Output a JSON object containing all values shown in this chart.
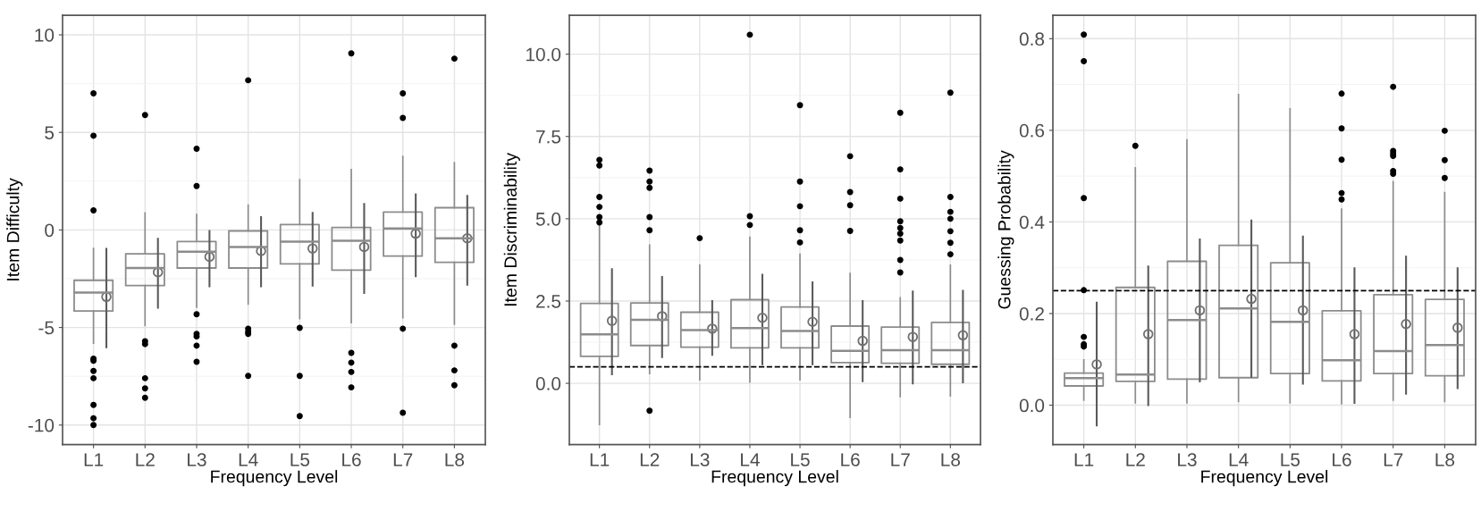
{
  "chart_data": [
    {
      "type": "box",
      "xlabel": "Frequency Level",
      "ylabel": "Item Difficulty",
      "categories": [
        "L1",
        "L2",
        "L3",
        "L4",
        "L5",
        "L6",
        "L7",
        "L8"
      ],
      "ylim": [
        -11,
        11
      ],
      "yticks": [
        -10,
        -5,
        0,
        5,
        10
      ],
      "grid": true,
      "series": [
        {
          "color": "#8c8c8c",
          "boxes": [
            {
              "low": -5.8,
              "q1": -4.15,
              "median": -3.21,
              "q3": -2.58,
              "high": -0.95,
              "outliers": [
                7.0,
                4.83,
                1.0,
                -6.6,
                -6.7,
                -7.23,
                -7.6,
                -8.97,
                -9.65,
                -10.0
              ]
            },
            {
              "low": -4.9,
              "q1": -2.85,
              "median": -1.95,
              "q3": -1.22,
              "high": 0.87,
              "outliers": [
                5.89,
                -5.7,
                -5.85,
                -7.6,
                -8.12,
                -8.6
              ]
            },
            {
              "low": -3.96,
              "q1": -1.95,
              "median": -1.11,
              "q3": -0.59,
              "high": 0.79,
              "outliers": [
                4.16,
                2.25,
                -4.32,
                -5.33,
                -5.46,
                -5.93,
                -6.76
              ]
            },
            {
              "low": -3.8,
              "q1": -1.95,
              "median": -0.87,
              "q3": -0.05,
              "high": 1.27,
              "outliers": [
                7.67,
                -5.06,
                -5.22,
                -5.33,
                -7.48
              ]
            },
            {
              "low": -4.54,
              "q1": -1.74,
              "median": -0.6,
              "q3": 0.28,
              "high": 2.58,
              "outliers": [
                -5.02,
                -7.48,
                -9.54
              ]
            },
            {
              "low": -4.75,
              "q1": -2.06,
              "median": -0.55,
              "q3": 0.13,
              "high": 3.09,
              "outliers": [
                9.05,
                -6.3,
                -6.8,
                -7.28,
                -8.07
              ]
            },
            {
              "low": -4.5,
              "q1": -1.34,
              "median": 0.08,
              "q3": 0.92,
              "high": 3.77,
              "outliers": [
                7.0,
                5.74,
                -5.06,
                -9.37
              ]
            },
            {
              "low": -4.83,
              "q1": -1.66,
              "median": -0.43,
              "q3": 1.14,
              "high": 3.45,
              "outliers": [
                8.78,
                -5.93,
                -7.2,
                -7.96
              ]
            }
          ]
        },
        {
          "type": "scatter",
          "color": "#707070",
          "marker": "circle",
          "x": [
            "L1",
            "L2",
            "L3",
            "L4",
            "L5",
            "L6",
            "L7",
            "L8"
          ],
          "values": [
            -3.43,
            -2.17,
            -1.38,
            -1.08,
            -0.95,
            -0.87,
            -0.19,
            -0.43
          ],
          "errors": [
            [
              -6.06,
              -0.92
            ],
            [
              -4.03,
              -0.4
            ],
            [
              -2.93,
              0.0
            ],
            [
              -2.93,
              0.71
            ],
            [
              -2.9,
              0.92
            ],
            [
              -3.28,
              1.38
            ],
            [
              -2.42,
              1.87
            ],
            [
              -2.85,
              1.79
            ]
          ]
        }
      ]
    },
    {
      "type": "box",
      "xlabel": "Frequency Level",
      "ylabel": "Item Discriminability",
      "categories": [
        "L1",
        "L2",
        "L3",
        "L4",
        "L5",
        "L6",
        "L7",
        "L8"
      ],
      "ylim": [
        -1.86,
        11.18
      ],
      "yticks": [
        {
          "value": 0,
          "label": "0.0"
        },
        2.5,
        {
          "value": 5,
          "label": "5.0"
        },
        7.5,
        {
          "value": 10,
          "label": "10.0"
        }
      ],
      "grid": true,
      "ref_lines": [
        {
          "axis": "y",
          "value": 0.5,
          "line_style": "dashed",
          "color": "#000000"
        }
      ],
      "series": [
        {
          "color": "#8c8c8c",
          "boxes": [
            {
              "low": -1.25,
              "q1": 0.82,
              "median": 1.49,
              "q3": 2.43,
              "high": 4.81,
              "outliers": [
                6.79,
                6.62,
                5.66,
                5.36,
                5.05,
                4.89
              ]
            },
            {
              "low": 0.3,
              "q1": 1.15,
              "median": 1.93,
              "q3": 2.44,
              "high": 4.2,
              "outliers": [
                6.46,
                6.13,
                5.94,
                5.05,
                4.65,
                -0.83
              ]
            },
            {
              "low": 0.11,
              "q1": 1.1,
              "median": 1.62,
              "q3": 2.16,
              "high": 3.59,
              "outliers": [
                4.41
              ]
            },
            {
              "low": 0.04,
              "q1": 1.08,
              "median": 1.68,
              "q3": 2.54,
              "high": 4.44,
              "outliers": [
                10.59,
                5.08,
                4.81
              ]
            },
            {
              "low": 0.11,
              "q1": 1.08,
              "median": 1.59,
              "q3": 2.32,
              "high": 3.92,
              "outliers": [
                8.45,
                6.13,
                5.38,
                4.65,
                4.28
              ]
            },
            {
              "low": -1.03,
              "q1": 0.63,
              "median": 0.99,
              "q3": 1.74,
              "high": 3.34,
              "outliers": [
                6.9,
                5.81,
                5.41,
                4.63
              ]
            },
            {
              "low": -0.4,
              "q1": 0.61,
              "median": 1.01,
              "q3": 1.71,
              "high": 2.6,
              "outliers": [
                8.22,
                6.5,
                5.61,
                4.92,
                4.72,
                4.55,
                4.34,
                3.75,
                3.37
              ]
            },
            {
              "low": -0.38,
              "q1": 0.58,
              "median": 1.01,
              "q3": 1.85,
              "high": 3.59,
              "outliers": [
                8.83,
                5.66,
                5.21,
                5.0,
                4.62,
                4.27,
                3.92
              ]
            }
          ]
        },
        {
          "type": "scatter",
          "color": "#707070",
          "marker": "circle",
          "x": [
            "L1",
            "L2",
            "L3",
            "L4",
            "L5",
            "L6",
            "L7",
            "L8"
          ],
          "values": [
            1.9,
            2.04,
            1.66,
            1.99,
            1.87,
            1.29,
            1.41,
            1.46
          ],
          "errors": [
            [
              0.25,
              3.5
            ],
            [
              0.77,
              3.26
            ],
            [
              0.84,
              2.53
            ],
            [
              0.55,
              3.33
            ],
            [
              0.55,
              3.1
            ],
            [
              0.04,
              2.53
            ],
            [
              -0.03,
              2.82
            ],
            [
              0.0,
              2.84
            ]
          ]
        }
      ]
    },
    {
      "type": "box",
      "xlabel": "Frequency Level",
      "ylabel": "Guessing Probability",
      "categories": [
        "L1",
        "L2",
        "L3",
        "L4",
        "L5",
        "L6",
        "L7",
        "L8"
      ],
      "ylim": [
        -0.086,
        0.851
      ],
      "yticks": [
        {
          "value": 0,
          "label": "0.0"
        },
        0.2,
        0.4,
        0.6,
        0.8
      ],
      "grid": true,
      "ref_lines": [
        {
          "axis": "y",
          "value": 0.25,
          "line_style": "dashed",
          "color": "#000000"
        }
      ],
      "series": [
        {
          "color": "#8c8c8c",
          "boxes": [
            {
              "low": 0.011,
              "q1": 0.042,
              "median": 0.059,
              "q3": 0.07,
              "high": 0.099,
              "outliers": [
                0.809,
                0.751,
                0.452,
                0.251,
                0.149,
                0.133,
                0.128
              ]
            },
            {
              "low": 0.005,
              "q1": 0.052,
              "median": 0.067,
              "q3": 0.257,
              "high": 0.518,
              "outliers": [
                0.566
              ]
            },
            {
              "low": 0.005,
              "q1": 0.057,
              "median": 0.186,
              "q3": 0.314,
              "high": 0.579
            },
            {
              "low": 0.008,
              "q1": 0.06,
              "median": 0.211,
              "q3": 0.349,
              "high": 0.678
            },
            {
              "low": 0.005,
              "q1": 0.069,
              "median": 0.182,
              "q3": 0.311,
              "high": 0.647
            },
            {
              "low": 0.003,
              "q1": 0.053,
              "median": 0.098,
              "q3": 0.206,
              "high": 0.428,
              "outliers": [
                0.68,
                0.604,
                0.536,
                0.463,
                0.449
              ]
            },
            {
              "low": 0.011,
              "q1": 0.069,
              "median": 0.118,
              "q3": 0.241,
              "high": 0.488,
              "outliers": [
                0.695,
                0.555,
                0.549,
                0.544,
                0.511,
                0.505
              ]
            },
            {
              "low": 0.008,
              "q1": 0.064,
              "median": 0.131,
              "q3": 0.231,
              "high": 0.464,
              "outliers": [
                0.599,
                0.535,
                0.496
              ]
            }
          ]
        },
        {
          "type": "scatter",
          "color": "#707070",
          "marker": "circle",
          "x": [
            "L1",
            "L2",
            "L3",
            "L4",
            "L5",
            "L6",
            "L7",
            "L8"
          ],
          "values": [
            0.089,
            0.155,
            0.207,
            0.232,
            0.207,
            0.155,
            0.177,
            0.169
          ],
          "errors": [
            [
              -0.046,
              0.226
            ],
            [
              -0.002,
              0.305
            ],
            [
              0.05,
              0.364
            ],
            [
              0.06,
              0.405
            ],
            [
              0.045,
              0.37
            ],
            [
              0.003,
              0.301
            ],
            [
              0.023,
              0.326
            ],
            [
              0.035,
              0.301
            ]
          ]
        }
      ]
    }
  ]
}
